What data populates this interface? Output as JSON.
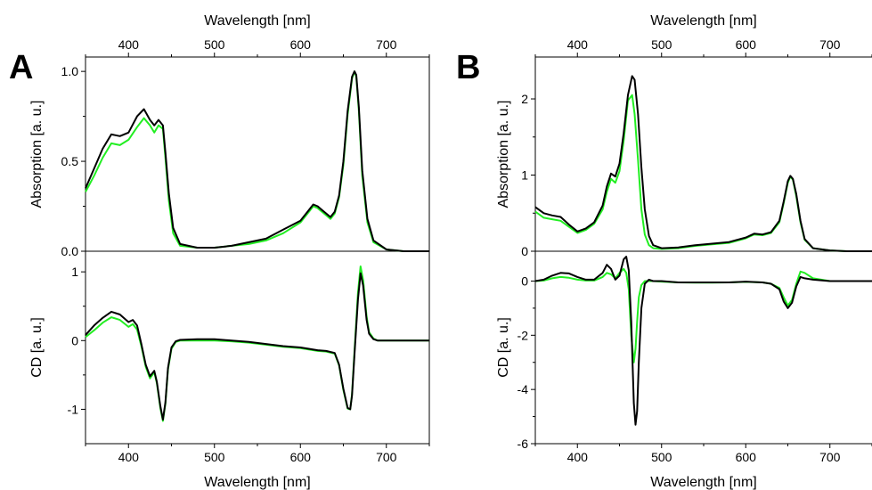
{
  "chart_data": [
    {
      "panel": "A",
      "type": "line",
      "xlabel_top": "Wavelength [nm]",
      "xlabel_bottom": "Wavelength [nm]",
      "xlim": [
        350,
        750
      ],
      "xticks": [
        400,
        500,
        600,
        700
      ],
      "series_colors": [
        "#000000",
        "#22ee22"
      ],
      "top": {
        "ylabel": "Absorption [a. u.]",
        "ylim": [
          0,
          1.08
        ],
        "yticks": [
          0,
          0.5,
          1
        ],
        "ytick_labels": [
          "0.0",
          "0.5",
          "1.0"
        ],
        "series": [
          {
            "x": [
              350,
              360,
              370,
              380,
              390,
              400,
              410,
              418,
              425,
              430,
              435,
              440,
              443,
              447,
              452,
              460,
              480,
              500,
              520,
              540,
              560,
              580,
              600,
              610,
              615,
              620,
              625,
              630,
              635,
              640,
              645,
              650,
              655,
              660,
              663,
              665,
              668,
              672,
              678,
              685,
              700,
              720,
              750
            ],
            "y": [
              0.35,
              0.46,
              0.57,
              0.65,
              0.64,
              0.66,
              0.75,
              0.79,
              0.73,
              0.7,
              0.73,
              0.7,
              0.55,
              0.32,
              0.13,
              0.04,
              0.02,
              0.02,
              0.03,
              0.05,
              0.07,
              0.12,
              0.17,
              0.23,
              0.26,
              0.25,
              0.23,
              0.21,
              0.19,
              0.22,
              0.31,
              0.5,
              0.78,
              0.97,
              1.0,
              0.98,
              0.8,
              0.45,
              0.18,
              0.06,
              0.01,
              0.0,
              0.0
            ]
          },
          {
            "x": [
              350,
              360,
              370,
              380,
              390,
              400,
              410,
              418,
              425,
              430,
              435,
              440,
              443,
              447,
              452,
              460,
              480,
              500,
              520,
              540,
              560,
              580,
              600,
              610,
              615,
              620,
              625,
              630,
              635,
              640,
              645,
              650,
              655,
              660,
              663,
              665,
              668,
              672,
              678,
              685,
              700,
              720,
              750
            ],
            "y": [
              0.33,
              0.42,
              0.52,
              0.6,
              0.59,
              0.62,
              0.69,
              0.74,
              0.7,
              0.66,
              0.7,
              0.68,
              0.52,
              0.28,
              0.1,
              0.03,
              0.02,
              0.02,
              0.03,
              0.04,
              0.06,
              0.1,
              0.16,
              0.22,
              0.25,
              0.24,
              0.22,
              0.2,
              0.18,
              0.21,
              0.3,
              0.48,
              0.76,
              0.96,
              1.0,
              0.97,
              0.78,
              0.42,
              0.16,
              0.05,
              0.01,
              0.0,
              0.0
            ]
          }
        ]
      },
      "bottom": {
        "ylabel": "CD [a. u.]",
        "ylim": [
          -1.5,
          1.3
        ],
        "yticks": [
          -1,
          0,
          1
        ],
        "ytick_labels": [
          "-1",
          "0",
          "1"
        ],
        "series": [
          {
            "x": [
              350,
              360,
              370,
              380,
              390,
              400,
              405,
              410,
              415,
              420,
              425,
              430,
              433,
              437,
              440,
              443,
              446,
              450,
              455,
              460,
              480,
              500,
              520,
              540,
              560,
              580,
              600,
              620,
              630,
              640,
              645,
              650,
              655,
              658,
              660,
              663,
              667,
              670,
              673,
              677,
              680,
              685,
              690,
              700,
              720,
              750
            ],
            "y": [
              0.08,
              0.22,
              0.33,
              0.42,
              0.38,
              0.27,
              0.3,
              0.22,
              -0.05,
              -0.35,
              -0.52,
              -0.44,
              -0.6,
              -0.95,
              -1.15,
              -0.9,
              -0.4,
              -0.1,
              -0.01,
              0.01,
              0.02,
              0.02,
              0.0,
              -0.02,
              -0.05,
              -0.08,
              -0.1,
              -0.14,
              -0.15,
              -0.18,
              -0.35,
              -0.7,
              -0.98,
              -1.0,
              -0.8,
              -0.2,
              0.6,
              0.98,
              0.8,
              0.3,
              0.1,
              0.02,
              0.0,
              0.0,
              0.0,
              0.0
            ]
          },
          {
            "x": [
              350,
              360,
              370,
              380,
              390,
              400,
              405,
              410,
              415,
              420,
              425,
              430,
              433,
              437,
              440,
              443,
              446,
              450,
              455,
              460,
              480,
              500,
              520,
              540,
              560,
              580,
              600,
              620,
              630,
              640,
              645,
              650,
              655,
              658,
              660,
              663,
              667,
              670,
              673,
              677,
              680,
              685,
              690,
              700,
              720,
              750
            ],
            "y": [
              0.05,
              0.15,
              0.26,
              0.34,
              0.3,
              0.2,
              0.24,
              0.16,
              -0.08,
              -0.38,
              -0.55,
              -0.46,
              -0.62,
              -0.98,
              -1.17,
              -0.92,
              -0.42,
              -0.12,
              -0.02,
              0.0,
              0.0,
              0.0,
              -0.01,
              -0.03,
              -0.06,
              -0.09,
              -0.11,
              -0.15,
              -0.16,
              -0.19,
              -0.36,
              -0.72,
              -0.99,
              -1.0,
              -0.78,
              -0.15,
              0.7,
              1.08,
              0.88,
              0.35,
              0.12,
              0.03,
              0.0,
              0.0,
              0.0,
              0.0
            ]
          }
        ]
      }
    },
    {
      "panel": "B",
      "type": "line",
      "xlabel_top": "Wavelength [nm]",
      "xlabel_bottom": "Wavelength [nm]",
      "xlim": [
        350,
        750
      ],
      "xticks": [
        400,
        500,
        600,
        700
      ],
      "series_colors": [
        "#000000",
        "#22ee22"
      ],
      "top": {
        "ylabel": "Absorption [a. u.]",
        "ylim": [
          0,
          2.55
        ],
        "yticks": [
          0,
          1,
          2
        ],
        "ytick_labels": [
          "0",
          "1",
          "2"
        ],
        "series": [
          {
            "x": [
              350,
              360,
              370,
              380,
              390,
              400,
              410,
              420,
              430,
              435,
              440,
              445,
              450,
              455,
              460,
              465,
              468,
              472,
              476,
              480,
              485,
              490,
              500,
              520,
              540,
              560,
              580,
              600,
              610,
              620,
              630,
              640,
              645,
              650,
              653,
              656,
              660,
              665,
              670,
              680,
              700,
              720,
              750
            ],
            "y": [
              0.58,
              0.5,
              0.47,
              0.45,
              0.35,
              0.26,
              0.3,
              0.38,
              0.6,
              0.85,
              1.02,
              0.98,
              1.15,
              1.55,
              2.05,
              2.3,
              2.25,
              1.8,
              1.1,
              0.55,
              0.2,
              0.08,
              0.04,
              0.05,
              0.08,
              0.1,
              0.12,
              0.18,
              0.23,
              0.22,
              0.25,
              0.4,
              0.65,
              0.92,
              0.99,
              0.95,
              0.75,
              0.4,
              0.16,
              0.04,
              0.01,
              0.0,
              0.0
            ]
          },
          {
            "x": [
              350,
              360,
              370,
              380,
              390,
              400,
              410,
              420,
              430,
              435,
              440,
              445,
              450,
              455,
              460,
              465,
              468,
              472,
              476,
              480,
              485,
              490,
              500,
              520,
              540,
              560,
              580,
              600,
              610,
              620,
              630,
              640,
              645,
              650,
              653,
              656,
              660,
              665,
              670,
              680,
              700,
              720,
              750
            ],
            "y": [
              0.52,
              0.44,
              0.42,
              0.4,
              0.32,
              0.24,
              0.28,
              0.36,
              0.55,
              0.78,
              0.95,
              0.9,
              1.05,
              1.45,
              1.98,
              2.05,
              1.8,
              1.2,
              0.55,
              0.22,
              0.08,
              0.04,
              0.03,
              0.04,
              0.07,
              0.09,
              0.11,
              0.17,
              0.22,
              0.21,
              0.24,
              0.38,
              0.63,
              0.9,
              0.98,
              0.94,
              0.72,
              0.38,
              0.15,
              0.04,
              0.01,
              0.0,
              0.0
            ]
          }
        ]
      },
      "bottom": {
        "ylabel": "CD [a. u.]",
        "ylim": [
          -6,
          1.1
        ],
        "yticks": [
          -6,
          -4,
          -2,
          0
        ],
        "ytick_labels": [
          "-6",
          "-4",
          "-2",
          "0"
        ],
        "series": [
          {
            "x": [
              350,
              360,
              370,
              380,
              390,
              400,
              410,
              420,
              430,
              435,
              440,
              445,
              450,
              455,
              458,
              461,
              464,
              467,
              469,
              471,
              473,
              476,
              480,
              485,
              490,
              500,
              520,
              540,
              560,
              580,
              600,
              620,
              630,
              640,
              645,
              650,
              655,
              660,
              665,
              670,
              680,
              700,
              720,
              750
            ],
            "y": [
              0.0,
              0.05,
              0.2,
              0.3,
              0.28,
              0.15,
              0.05,
              0.05,
              0.3,
              0.6,
              0.45,
              0.05,
              0.2,
              0.8,
              0.9,
              0.4,
              -1.5,
              -4.5,
              -5.3,
              -4.8,
              -3.0,
              -1.0,
              -0.1,
              0.05,
              0.0,
              0.0,
              -0.05,
              -0.05,
              -0.05,
              -0.05,
              -0.02,
              -0.05,
              -0.1,
              -0.3,
              -0.75,
              -1.0,
              -0.8,
              -0.2,
              0.15,
              0.1,
              0.05,
              0.0,
              0.0,
              0.0
            ]
          },
          {
            "x": [
              350,
              360,
              370,
              380,
              390,
              400,
              410,
              420,
              430,
              435,
              440,
              445,
              450,
              455,
              458,
              461,
              464,
              467,
              469,
              471,
              473,
              476,
              480,
              485,
              490,
              500,
              520,
              540,
              560,
              580,
              600,
              620,
              630,
              640,
              645,
              650,
              655,
              660,
              665,
              670,
              680,
              700,
              720,
              750
            ],
            "y": [
              0.0,
              0.02,
              0.1,
              0.15,
              0.12,
              0.05,
              0.02,
              0.02,
              0.15,
              0.3,
              0.25,
              0.1,
              0.3,
              0.45,
              0.3,
              -0.3,
              -2.0,
              -3.0,
              -2.5,
              -1.5,
              -0.6,
              -0.15,
              0.0,
              0.0,
              0.0,
              -0.02,
              -0.05,
              -0.06,
              -0.06,
              -0.05,
              -0.03,
              -0.05,
              -0.1,
              -0.25,
              -0.6,
              -0.9,
              -0.7,
              -0.1,
              0.35,
              0.3,
              0.1,
              0.0,
              0.0,
              0.0
            ]
          }
        ]
      }
    }
  ]
}
